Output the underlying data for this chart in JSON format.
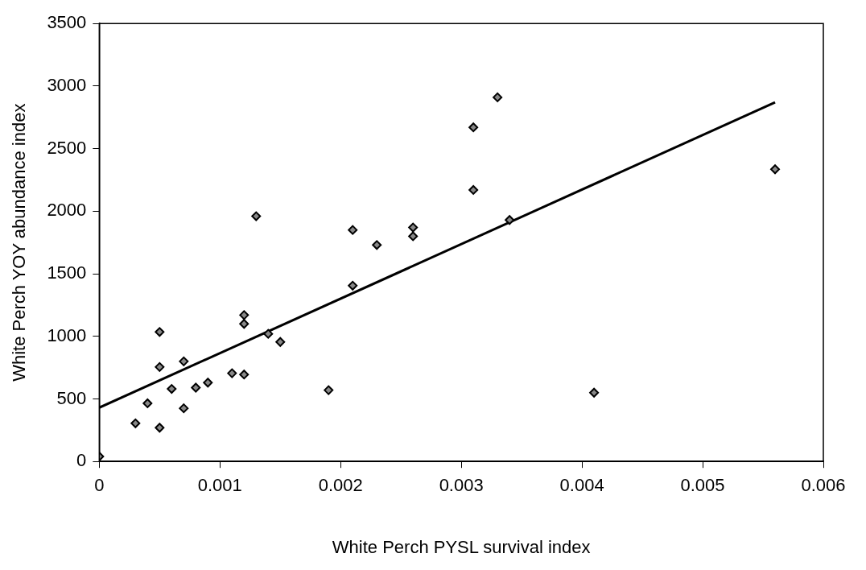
{
  "chart_data": {
    "type": "scatter",
    "xlabel": "White Perch PYSL survival index",
    "ylabel": "White Perch YOY abundance index",
    "xlim": [
      0,
      0.006
    ],
    "xticks": [
      0,
      0.001,
      0.002,
      0.003,
      0.004,
      0.005,
      0.006
    ],
    "ylim": [
      0,
      3500
    ],
    "yticks": [
      0,
      500,
      1000,
      1500,
      2000,
      2500,
      3000,
      3500
    ],
    "grid": false,
    "legend": false,
    "series": [
      {
        "marker": "diamond",
        "color": "#000000",
        "x": [
          0,
          0.0003,
          0.0004,
          0.0005,
          0.0005,
          0.0005,
          0.0006,
          0.0007,
          0.0007,
          0.0008,
          0.0009,
          0.0011,
          0.0012,
          0.0012,
          0.0012,
          0.0013,
          0.0014,
          0.0015,
          0.0019,
          0.0021,
          0.0021,
          0.0023,
          0.0026,
          0.0026,
          0.0031,
          0.0031,
          0.0033,
          0.0034,
          0.0041,
          0.0056
        ],
        "values": [
          40,
          305,
          465,
          1035,
          755,
          270,
          580,
          800,
          425,
          590,
          630,
          705,
          1170,
          1100,
          695,
          1960,
          1020,
          955,
          570,
          1850,
          1405,
          1730,
          1870,
          1800,
          2670,
          2170,
          2910,
          1930,
          550,
          2335
        ]
      },
      {
        "type": "line",
        "marker": "none",
        "color": "#000000",
        "x": [
          0,
          0.0056
        ],
        "values": [
          430,
          2870
        ]
      }
    ]
  }
}
